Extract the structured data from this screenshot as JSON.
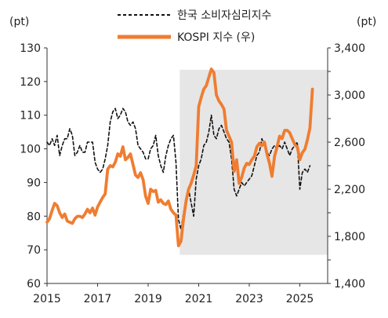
{
  "chart_data": {
    "type": "line",
    "title": "",
    "left_unit": "(pt)",
    "right_unit": "(pt)",
    "x_range": [
      2015,
      2026.1
    ],
    "x_ticks": [
      "2015",
      "2017",
      "2019",
      "2021",
      "2023",
      "2025"
    ],
    "y_left": {
      "range": [
        60,
        130
      ],
      "ticks": [
        "60",
        "70",
        "80",
        "90",
        "100",
        "110",
        "120",
        "130"
      ]
    },
    "y_right": {
      "range": [
        1400,
        3400
      ],
      "ticks": [
        "1,400",
        "1,600",
        "1,800",
        "2,000",
        "2,200",
        "2,400",
        "2,600",
        "2,800",
        "3,000",
        "3,200",
        "3,400"
      ]
    },
    "shaded_region": {
      "x": [
        2020.25,
        2026.1
      ],
      "y_left": [
        68.5,
        123.5
      ],
      "color": "#e6e6e6"
    },
    "series": [
      {
        "name": "한국 소비자심리지수",
        "axis": "left",
        "style": "dashed",
        "color": "#111111",
        "points": [
          [
            2015.0,
            102
          ],
          [
            2015.1,
            101
          ],
          [
            2015.2,
            103
          ],
          [
            2015.3,
            101
          ],
          [
            2015.4,
            104
          ],
          [
            2015.5,
            98
          ],
          [
            2015.6,
            101
          ],
          [
            2015.7,
            103
          ],
          [
            2015.8,
            103
          ],
          [
            2015.9,
            106
          ],
          [
            2016.0,
            104
          ],
          [
            2016.1,
            98
          ],
          [
            2016.2,
            99
          ],
          [
            2016.3,
            101
          ],
          [
            2016.4,
            99
          ],
          [
            2016.5,
            99
          ],
          [
            2016.6,
            102
          ],
          [
            2016.7,
            102
          ],
          [
            2016.8,
            102
          ],
          [
            2016.9,
            96
          ],
          [
            2017.0,
            94
          ],
          [
            2017.1,
            93
          ],
          [
            2017.2,
            94
          ],
          [
            2017.3,
            97
          ],
          [
            2017.4,
            101
          ],
          [
            2017.5,
            108
          ],
          [
            2017.6,
            111
          ],
          [
            2017.7,
            112
          ],
          [
            2017.8,
            109
          ],
          [
            2017.9,
            110
          ],
          [
            2018.0,
            112
          ],
          [
            2018.1,
            111
          ],
          [
            2018.2,
            108
          ],
          [
            2018.3,
            107
          ],
          [
            2018.4,
            108
          ],
          [
            2018.5,
            106
          ],
          [
            2018.6,
            101
          ],
          [
            2018.7,
            100
          ],
          [
            2018.8,
            99
          ],
          [
            2018.9,
            97
          ],
          [
            2019.0,
            97
          ],
          [
            2019.1,
            100
          ],
          [
            2019.2,
            101
          ],
          [
            2019.3,
            104
          ],
          [
            2019.4,
            98
          ],
          [
            2019.5,
            95
          ],
          [
            2019.6,
            93
          ],
          [
            2019.7,
            98
          ],
          [
            2019.8,
            101
          ],
          [
            2019.9,
            103
          ],
          [
            2020.0,
            104
          ],
          [
            2020.1,
            96
          ],
          [
            2020.2,
            79
          ],
          [
            2020.3,
            76
          ],
          [
            2020.4,
            81
          ],
          [
            2020.5,
            85
          ],
          [
            2020.6,
            88
          ],
          [
            2020.7,
            84
          ],
          [
            2020.8,
            80
          ],
          [
            2020.9,
            91
          ],
          [
            2021.0,
            95
          ],
          [
            2021.1,
            97
          ],
          [
            2021.2,
            101
          ],
          [
            2021.3,
            102
          ],
          [
            2021.4,
            105
          ],
          [
            2021.5,
            110
          ],
          [
            2021.6,
            104
          ],
          [
            2021.7,
            103
          ],
          [
            2021.8,
            106
          ],
          [
            2021.9,
            107
          ],
          [
            2022.0,
            105
          ],
          [
            2022.1,
            103
          ],
          [
            2022.2,
            102
          ],
          [
            2022.3,
            97
          ],
          [
            2022.4,
            88
          ],
          [
            2022.5,
            86
          ],
          [
            2022.6,
            88
          ],
          [
            2022.7,
            90
          ],
          [
            2022.8,
            89
          ],
          [
            2022.9,
            90
          ],
          [
            2023.0,
            91
          ],
          [
            2023.1,
            92
          ],
          [
            2023.2,
            95
          ],
          [
            2023.3,
            98
          ],
          [
            2023.4,
            99
          ],
          [
            2023.5,
            103
          ],
          [
            2023.6,
            101
          ],
          [
            2023.7,
            99
          ],
          [
            2023.8,
            98
          ],
          [
            2023.9,
            100
          ],
          [
            2024.0,
            101
          ],
          [
            2024.1,
            100
          ],
          [
            2024.2,
            101
          ],
          [
            2024.3,
            100
          ],
          [
            2024.4,
            102
          ],
          [
            2024.5,
            100
          ],
          [
            2024.6,
            98
          ],
          [
            2024.7,
            100
          ],
          [
            2024.8,
            101
          ],
          [
            2024.9,
            102
          ],
          [
            2025.0,
            88
          ],
          [
            2025.1,
            93
          ],
          [
            2025.2,
            94
          ],
          [
            2025.3,
            93
          ],
          [
            2025.4,
            95
          ]
        ]
      },
      {
        "name": "KOSPI 지수 (우)",
        "axis": "right",
        "style": "solid",
        "color": "#ef7d31",
        "points": [
          [
            2015.0,
            1920
          ],
          [
            2015.1,
            1950
          ],
          [
            2015.2,
            2020
          ],
          [
            2015.3,
            2080
          ],
          [
            2015.4,
            2060
          ],
          [
            2015.5,
            2000
          ],
          [
            2015.6,
            1960
          ],
          [
            2015.7,
            1990
          ],
          [
            2015.8,
            1930
          ],
          [
            2015.9,
            1920
          ],
          [
            2016.0,
            1910
          ],
          [
            2016.1,
            1950
          ],
          [
            2016.2,
            1970
          ],
          [
            2016.3,
            1970
          ],
          [
            2016.4,
            1960
          ],
          [
            2016.5,
            1990
          ],
          [
            2016.6,
            2030
          ],
          [
            2016.7,
            2000
          ],
          [
            2016.8,
            2040
          ],
          [
            2016.9,
            1980
          ],
          [
            2017.0,
            2050
          ],
          [
            2017.1,
            2090
          ],
          [
            2017.2,
            2130
          ],
          [
            2017.3,
            2160
          ],
          [
            2017.4,
            2370
          ],
          [
            2017.5,
            2400
          ],
          [
            2017.6,
            2390
          ],
          [
            2017.7,
            2430
          ],
          [
            2017.8,
            2500
          ],
          [
            2017.9,
            2480
          ],
          [
            2018.0,
            2560
          ],
          [
            2018.1,
            2450
          ],
          [
            2018.2,
            2470
          ],
          [
            2018.3,
            2500
          ],
          [
            2018.4,
            2410
          ],
          [
            2018.5,
            2320
          ],
          [
            2018.6,
            2300
          ],
          [
            2018.7,
            2340
          ],
          [
            2018.8,
            2280
          ],
          [
            2018.9,
            2140
          ],
          [
            2019.0,
            2080
          ],
          [
            2019.1,
            2200
          ],
          [
            2019.2,
            2180
          ],
          [
            2019.3,
            2190
          ],
          [
            2019.4,
            2090
          ],
          [
            2019.5,
            2110
          ],
          [
            2019.6,
            2080
          ],
          [
            2019.7,
            2070
          ],
          [
            2019.8,
            2100
          ],
          [
            2019.9,
            2030
          ],
          [
            2020.0,
            2000
          ],
          [
            2020.1,
            1980
          ],
          [
            2020.2,
            1720
          ],
          [
            2020.3,
            1760
          ],
          [
            2020.4,
            1950
          ],
          [
            2020.5,
            2100
          ],
          [
            2020.6,
            2200
          ],
          [
            2020.7,
            2250
          ],
          [
            2020.8,
            2320
          ],
          [
            2020.9,
            2400
          ],
          [
            2021.0,
            2900
          ],
          [
            2021.1,
            2980
          ],
          [
            2021.2,
            3050
          ],
          [
            2021.3,
            3080
          ],
          [
            2021.4,
            3150
          ],
          [
            2021.5,
            3220
          ],
          [
            2021.6,
            3190
          ],
          [
            2021.7,
            3000
          ],
          [
            2021.8,
            2950
          ],
          [
            2021.9,
            2920
          ],
          [
            2022.0,
            2880
          ],
          [
            2022.1,
            2700
          ],
          [
            2022.2,
            2650
          ],
          [
            2022.3,
            2600
          ],
          [
            2022.4,
            2350
          ],
          [
            2022.5,
            2450
          ],
          [
            2022.6,
            2250
          ],
          [
            2022.7,
            2300
          ],
          [
            2022.8,
            2380
          ],
          [
            2022.9,
            2420
          ],
          [
            2023.0,
            2410
          ],
          [
            2023.1,
            2450
          ],
          [
            2023.2,
            2480
          ],
          [
            2023.3,
            2560
          ],
          [
            2023.4,
            2590
          ],
          [
            2023.5,
            2570
          ],
          [
            2023.6,
            2600
          ],
          [
            2023.7,
            2500
          ],
          [
            2023.8,
            2420
          ],
          [
            2023.9,
            2310
          ],
          [
            2024.0,
            2480
          ],
          [
            2024.1,
            2560
          ],
          [
            2024.2,
            2650
          ],
          [
            2024.3,
            2630
          ],
          [
            2024.4,
            2700
          ],
          [
            2024.5,
            2700
          ],
          [
            2024.6,
            2680
          ],
          [
            2024.7,
            2630
          ],
          [
            2024.8,
            2580
          ],
          [
            2024.9,
            2560
          ],
          [
            2025.0,
            2450
          ],
          [
            2025.1,
            2510
          ],
          [
            2025.2,
            2540
          ],
          [
            2025.3,
            2620
          ],
          [
            2025.4,
            2720
          ],
          [
            2025.5,
            3050
          ]
        ]
      }
    ]
  }
}
